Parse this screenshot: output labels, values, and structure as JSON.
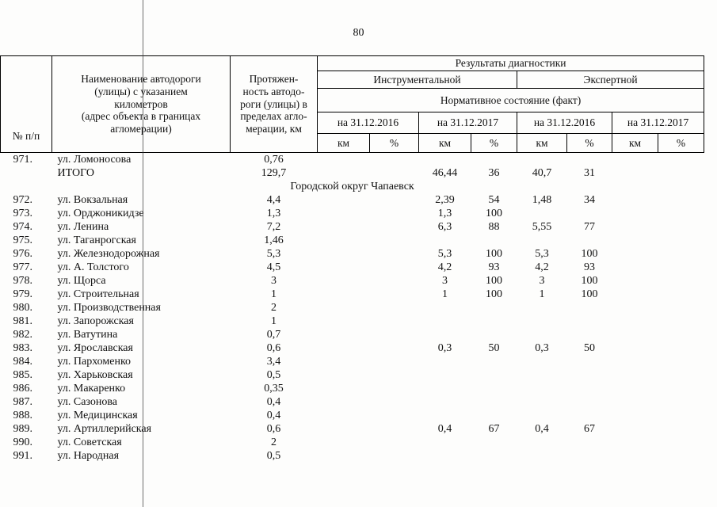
{
  "page": {
    "number": "80"
  },
  "table": {
    "headers": {
      "col_num": "№ п/п",
      "col_name": "Наименование автодороги\n(улицы) с указанием\nкилометров\n(адрес объекта в границах\nагломерации)",
      "col_length": "Протяжен-\nность автодо-\nроги (улицы) в\nпределах агло-\nмерации, км",
      "group_results": "Результаты диагностики",
      "group_instrumental": "Инструментальной",
      "group_expert": "Экспертной",
      "group_normative": "Нормативное состояние (факт)",
      "dates": [
        "на 31.12.2016",
        "на 31.12.2017",
        "на 31.12.2016",
        "на 31.12.2017"
      ],
      "unit_km": "км",
      "unit_pct": "%"
    },
    "rows": [
      {
        "num": "971.",
        "name": "ул. Ломоносова",
        "len": "0,76"
      },
      {
        "num": "",
        "name": "ИТОГО",
        "len": "129,7",
        "values": [
          "",
          "",
          "46,44",
          "36",
          "40,7",
          "31",
          "",
          ""
        ]
      },
      {
        "type": "section",
        "label": "Городской округ Чапаевск"
      },
      {
        "num": "972.",
        "name": "ул. Вокзальная",
        "len": "4,4",
        "values": [
          "",
          "",
          "2,39",
          "54",
          "1,48",
          "34",
          "",
          ""
        ]
      },
      {
        "num": "973.",
        "name": "ул. Орджоникидзе",
        "len": "1,3",
        "values": [
          "",
          "",
          "1,3",
          "100",
          "",
          "",
          "",
          ""
        ]
      },
      {
        "num": "974.",
        "name": "ул. Ленина",
        "len": "7,2",
        "values": [
          "",
          "",
          "6,3",
          "88",
          "5,55",
          "77",
          "",
          ""
        ]
      },
      {
        "num": "975.",
        "name": "ул. Таганрогская",
        "len": "1,46"
      },
      {
        "num": "976.",
        "name": "ул. Железнодорожная",
        "len": "5,3",
        "values": [
          "",
          "",
          "5,3",
          "100",
          "5,3",
          "100",
          "",
          ""
        ]
      },
      {
        "num": "977.",
        "name": "ул. А. Толстого",
        "len": "4,5",
        "values": [
          "",
          "",
          "4,2",
          "93",
          "4,2",
          "93",
          "",
          ""
        ]
      },
      {
        "num": "978.",
        "name": "ул. Щорса",
        "len": "3",
        "values": [
          "",
          "",
          "3",
          "100",
          "3",
          "100",
          "",
          ""
        ]
      },
      {
        "num": "979.",
        "name": "ул. Строительная",
        "len": "1",
        "values": [
          "",
          "",
          "1",
          "100",
          "1",
          "100",
          "",
          ""
        ]
      },
      {
        "num": "980.",
        "name": "ул. Производственная",
        "len": "2"
      },
      {
        "num": "981.",
        "name": "ул. Запорожская",
        "len": "1"
      },
      {
        "num": "982.",
        "name": "ул. Ватутина",
        "len": "0,7"
      },
      {
        "num": "983.",
        "name": "ул. Ярославская",
        "len": "0,6",
        "values": [
          "",
          "",
          "0,3",
          "50",
          "0,3",
          "50",
          "",
          ""
        ]
      },
      {
        "num": "984.",
        "name": "ул. Пархоменко",
        "len": "3,4"
      },
      {
        "num": "985.",
        "name": "ул. Харьковская",
        "len": "0,5"
      },
      {
        "num": "986.",
        "name": "ул. Макаренко",
        "len": "0,35"
      },
      {
        "num": "987.",
        "name": "ул. Сазонова",
        "len": "0,4"
      },
      {
        "num": "988.",
        "name": "ул. Медицинская",
        "len": "0,4"
      },
      {
        "num": "989.",
        "name": "ул. Артиллерийская",
        "len": "0,6",
        "values": [
          "",
          "",
          "0,4",
          "67",
          "0,4",
          "67",
          "",
          ""
        ]
      },
      {
        "num": "990.",
        "name": "ул. Советская",
        "len": "2"
      },
      {
        "num": "991.",
        "name": "ул. Народная",
        "len": "0,5"
      }
    ]
  }
}
